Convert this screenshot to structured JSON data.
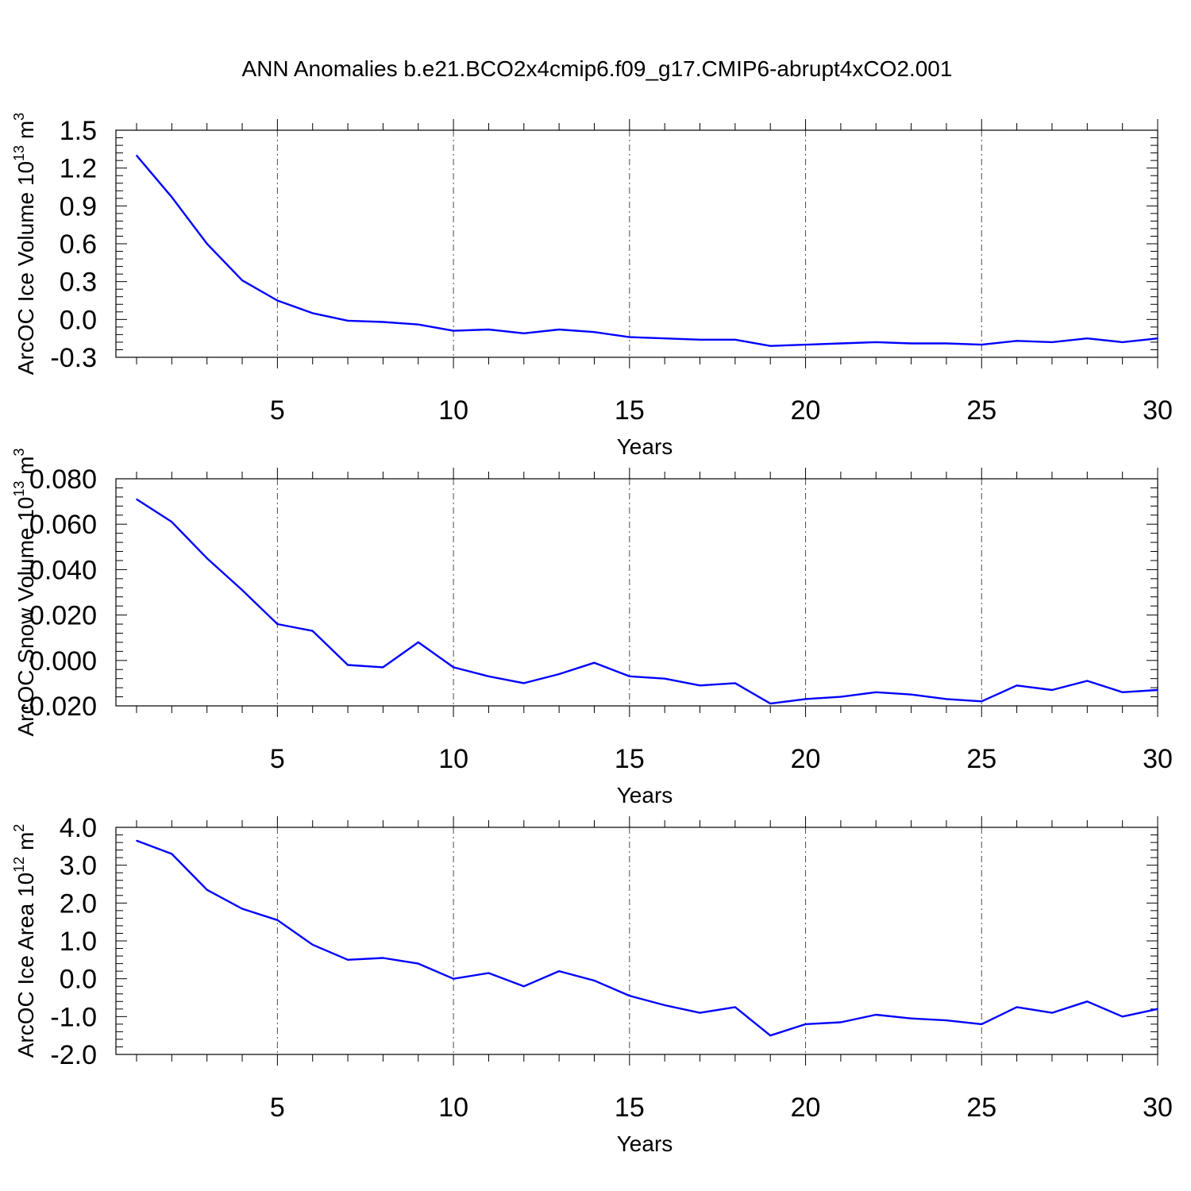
{
  "title": "ANN Anomalies b.e21.BCO2x4cmip6.f09_g17.CMIP6-abrupt4xCO2.001",
  "colors": {
    "series": "#0000ff",
    "axis": "#000000"
  },
  "chart_data": [
    {
      "type": "line",
      "ylabel": "ArcOC Ice Volume 10",
      "ylabel_sup": "13",
      "ylabel_unit": " m",
      "ylabel_unit_sup": "3",
      "xlabel": "Years",
      "xlim": [
        1,
        30
      ],
      "ylim": [
        -0.3,
        1.5
      ],
      "x_ticks": [
        5,
        10,
        15,
        20,
        25,
        30
      ],
      "x_tick_labels": [
        "5",
        "10",
        "15",
        "20",
        "25",
        "30"
      ],
      "y_ticks": [
        -0.3,
        0.0,
        0.3,
        0.6,
        0.9,
        1.2,
        1.5
      ],
      "y_tick_labels": [
        "-0.3",
        "0.0",
        "0.3",
        "0.6",
        "0.9",
        "1.2",
        "1.5"
      ],
      "grid": "x-dashed",
      "series": [
        {
          "x": [
            1,
            2,
            3,
            4,
            5,
            6,
            7,
            8,
            9,
            10,
            11,
            12,
            13,
            14,
            15,
            16,
            17,
            18,
            19,
            20,
            21,
            22,
            23,
            24,
            25,
            26,
            27,
            28,
            29,
            30
          ],
          "values": [
            1.3,
            0.97,
            0.6,
            0.31,
            0.15,
            0.05,
            -0.01,
            -0.02,
            -0.04,
            -0.09,
            -0.08,
            -0.11,
            -0.08,
            -0.1,
            -0.14,
            -0.15,
            -0.16,
            -0.16,
            -0.21,
            -0.2,
            -0.19,
            -0.18,
            -0.19,
            -0.19,
            -0.2,
            -0.17,
            -0.18,
            -0.15,
            -0.18,
            -0.15
          ]
        }
      ]
    },
    {
      "type": "line",
      "ylabel": "ArcOC Snow Volume 10",
      "ylabel_sup": "13",
      "ylabel_unit": " m",
      "ylabel_unit_sup": "3",
      "xlabel": "Years",
      "xlim": [
        1,
        30
      ],
      "ylim": [
        -0.02,
        0.08
      ],
      "x_ticks": [
        5,
        10,
        15,
        20,
        25,
        30
      ],
      "x_tick_labels": [
        "5",
        "10",
        "15",
        "20",
        "25",
        "30"
      ],
      "y_ticks": [
        -0.02,
        0.0,
        0.02,
        0.04,
        0.06,
        0.08
      ],
      "y_tick_labels": [
        "-0.020",
        "0.000",
        "0.020",
        "0.040",
        "0.060",
        "0.080"
      ],
      "grid": "x-dashed",
      "series": [
        {
          "x": [
            1,
            2,
            3,
            4,
            5,
            6,
            7,
            8,
            9,
            10,
            11,
            12,
            13,
            14,
            15,
            16,
            17,
            18,
            19,
            20,
            21,
            22,
            23,
            24,
            25,
            26,
            27,
            28,
            29,
            30
          ],
          "values": [
            0.071,
            0.061,
            0.045,
            0.031,
            0.016,
            0.013,
            -0.002,
            -0.003,
            0.008,
            -0.003,
            -0.007,
            -0.01,
            -0.006,
            -0.001,
            -0.007,
            -0.008,
            -0.011,
            -0.01,
            -0.019,
            -0.017,
            -0.016,
            -0.014,
            -0.015,
            -0.017,
            -0.018,
            -0.011,
            -0.013,
            -0.009,
            -0.014,
            -0.013
          ]
        }
      ]
    },
    {
      "type": "line",
      "ylabel": "ArcOC Ice Area 10",
      "ylabel_sup": "12",
      "ylabel_unit": " m",
      "ylabel_unit_sup": "2",
      "xlabel": "Years",
      "xlim": [
        1,
        30
      ],
      "ylim": [
        -2.0,
        4.0
      ],
      "x_ticks": [
        5,
        10,
        15,
        20,
        25,
        30
      ],
      "x_tick_labels": [
        "5",
        "10",
        "15",
        "20",
        "25",
        "30"
      ],
      "y_ticks": [
        -2.0,
        -1.0,
        0.0,
        1.0,
        2.0,
        3.0,
        4.0
      ],
      "y_tick_labels": [
        "-2.0",
        "-1.0",
        "0.0",
        "1.0",
        "2.0",
        "3.0",
        "4.0"
      ],
      "grid": "x-dashed",
      "series": [
        {
          "x": [
            1,
            2,
            3,
            4,
            5,
            6,
            7,
            8,
            9,
            10,
            11,
            12,
            13,
            14,
            15,
            16,
            17,
            18,
            19,
            20,
            21,
            22,
            23,
            24,
            25,
            26,
            27,
            28,
            29,
            30
          ],
          "values": [
            3.65,
            3.3,
            2.35,
            1.85,
            1.55,
            0.9,
            0.5,
            0.55,
            0.4,
            0.0,
            0.15,
            -0.2,
            0.2,
            -0.05,
            -0.45,
            -0.7,
            -0.9,
            -0.75,
            -1.5,
            -1.2,
            -1.15,
            -0.95,
            -1.05,
            -1.1,
            -1.2,
            -0.75,
            -0.9,
            -0.6,
            -1.0,
            -0.8
          ]
        }
      ]
    }
  ]
}
